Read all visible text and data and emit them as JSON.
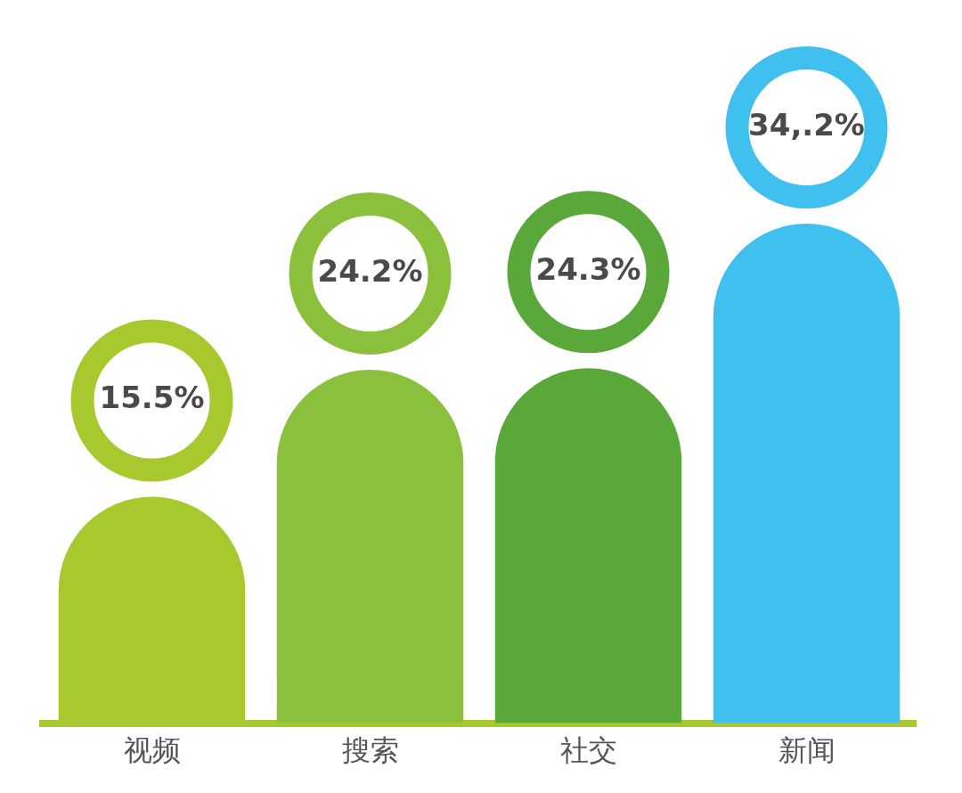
{
  "chart_data": {
    "type": "bar",
    "categories": [
      "视频",
      "搜索",
      "社交",
      "新闻"
    ],
    "values": [
      15.5,
      24.2,
      24.3,
      34.2
    ],
    "colors": [
      "#a8c92e",
      "#8bc03c",
      "#5aa83a",
      "#3fc0ee"
    ],
    "value_labels": [
      "15.5%",
      "24.2%",
      "24.3%",
      "34,.2%"
    ],
    "grid": false,
    "legend": false
  }
}
